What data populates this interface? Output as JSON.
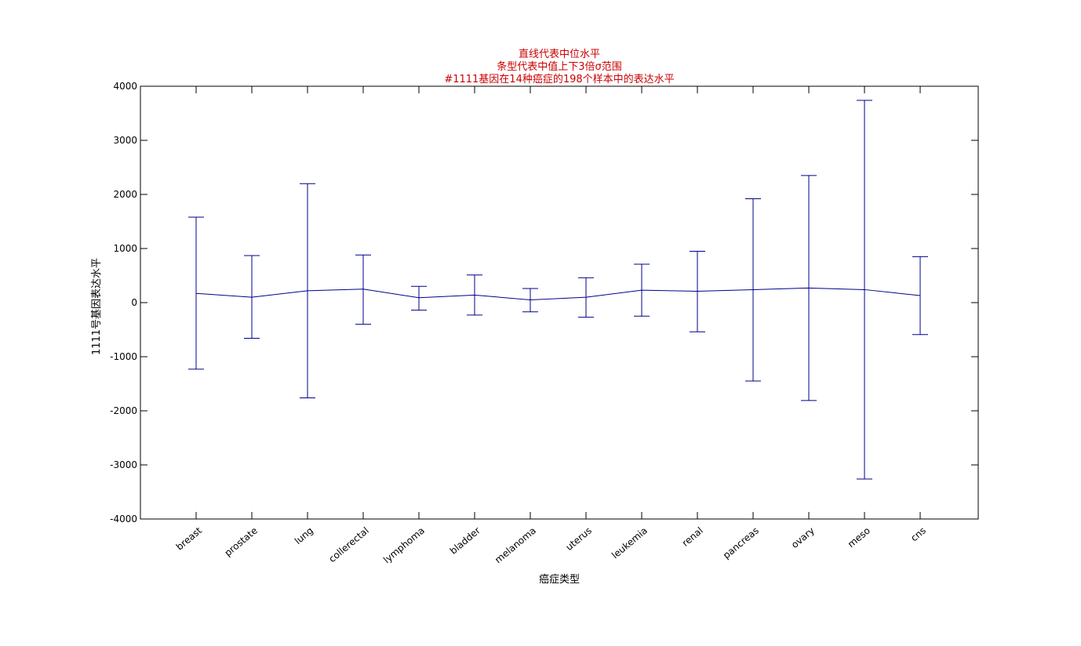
{
  "chart_data": {
    "type": "line",
    "title_lines": [
      "直线代表中位水平",
      "条型代表中值上下3倍σ范围",
      "#1111基因在14种癌症的198个样本中的表达水平"
    ],
    "xlabel": "癌症类型",
    "ylabel": "1111号基因表达水平",
    "ylim": [
      -4000,
      4000
    ],
    "yticks": [
      "-4000",
      "-3000",
      "-2000",
      "-1000",
      "0",
      "1000",
      "2000",
      "3000",
      "4000"
    ],
    "categories": [
      "breast",
      "prostate",
      "lung",
      "collerectal",
      "lymphoma",
      "bladder",
      "melanoma",
      "uterus",
      "leukemia",
      "renal",
      "pancreas",
      "ovary",
      "meso",
      "cns"
    ],
    "series": [
      {
        "values": [
          170,
          100,
          220,
          250,
          90,
          140,
          50,
          100,
          230,
          210,
          240,
          270,
          240,
          130
        ],
        "lower": [
          -1230,
          -660,
          -1760,
          -400,
          -140,
          -230,
          -170,
          -270,
          -250,
          -540,
          -1450,
          -1810,
          -3260,
          -590
        ],
        "upper": [
          1580,
          870,
          2200,
          880,
          300,
          510,
          260,
          460,
          710,
          950,
          1920,
          2350,
          3740,
          850
        ]
      }
    ],
    "grid": false,
    "legend": "none"
  },
  "colors": {
    "line": "#00008b",
    "title": "#cc0000",
    "axes": "#000000"
  }
}
